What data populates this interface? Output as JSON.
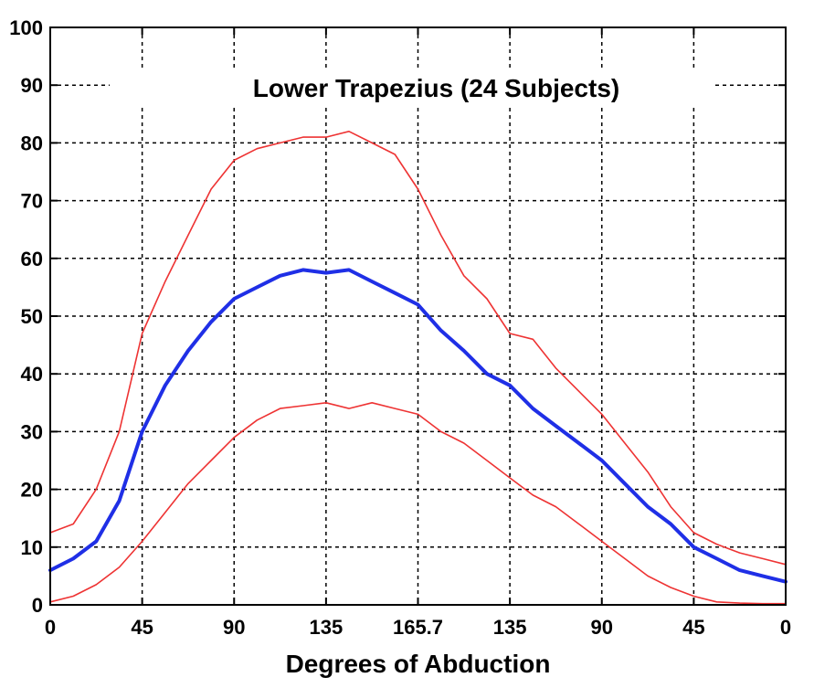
{
  "chart_data": {
    "type": "line",
    "title": "Lower Trapezius (24 Subjects)",
    "xlabel": "Degrees of Abduction",
    "ylabel": "",
    "ylim": [
      0,
      100
    ],
    "yticks": [
      "0",
      "10",
      "20",
      "30",
      "40",
      "50",
      "60",
      "70",
      "80",
      "90",
      "100"
    ],
    "xticks": [
      "0",
      "45",
      "90",
      "135",
      "165.7",
      "135",
      "90",
      "45",
      "0"
    ],
    "grid": true,
    "x_note": "abduction from 0 up to 165.7 degrees then back down to 0; points indexed by x tick position",
    "series": [
      {
        "color": "#ee3333",
        "style": "upper",
        "points": [
          [
            0,
            12.5
          ],
          [
            0.25,
            14
          ],
          [
            0.5,
            20
          ],
          [
            0.75,
            30
          ],
          [
            1.0,
            47
          ],
          [
            1.25,
            56
          ],
          [
            1.5,
            64
          ],
          [
            1.75,
            72
          ],
          [
            2.0,
            77
          ],
          [
            2.25,
            79
          ],
          [
            2.5,
            80
          ],
          [
            2.75,
            81
          ],
          [
            3.0,
            81
          ],
          [
            3.25,
            82
          ],
          [
            3.5,
            80
          ],
          [
            3.75,
            78
          ],
          [
            4.0,
            72
          ],
          [
            4.25,
            64
          ],
          [
            4.5,
            57
          ],
          [
            4.75,
            53
          ],
          [
            5.0,
            47
          ],
          [
            5.25,
            46
          ],
          [
            5.5,
            41
          ],
          [
            5.75,
            37
          ],
          [
            6.0,
            33
          ],
          [
            6.25,
            28
          ],
          [
            6.5,
            23
          ],
          [
            6.75,
            17
          ],
          [
            7.0,
            12.5
          ],
          [
            7.25,
            10.5
          ],
          [
            7.5,
            9
          ],
          [
            7.75,
            8
          ],
          [
            8.0,
            7
          ]
        ]
      },
      {
        "color": "#1f2fe6",
        "style": "mean",
        "points": [
          [
            0,
            6
          ],
          [
            0.25,
            8
          ],
          [
            0.5,
            11
          ],
          [
            0.75,
            18
          ],
          [
            1.0,
            30
          ],
          [
            1.25,
            38
          ],
          [
            1.5,
            44
          ],
          [
            1.75,
            49
          ],
          [
            2.0,
            53
          ],
          [
            2.25,
            55
          ],
          [
            2.5,
            57
          ],
          [
            2.75,
            58
          ],
          [
            3.0,
            57.5
          ],
          [
            3.25,
            58
          ],
          [
            3.5,
            56
          ],
          [
            3.75,
            54
          ],
          [
            4.0,
            52
          ],
          [
            4.25,
            47.5
          ],
          [
            4.5,
            44
          ],
          [
            4.75,
            40
          ],
          [
            5.0,
            38
          ],
          [
            5.25,
            34
          ],
          [
            5.5,
            31
          ],
          [
            5.75,
            28
          ],
          [
            6.0,
            25
          ],
          [
            6.25,
            21
          ],
          [
            6.5,
            17
          ],
          [
            6.75,
            14
          ],
          [
            7.0,
            10
          ],
          [
            7.25,
            8
          ],
          [
            7.5,
            6
          ],
          [
            7.75,
            5
          ],
          [
            8.0,
            4
          ]
        ]
      },
      {
        "color": "#ee3333",
        "style": "lower",
        "points": [
          [
            0,
            0.5
          ],
          [
            0.25,
            1.5
          ],
          [
            0.5,
            3.5
          ],
          [
            0.75,
            6.5
          ],
          [
            1.0,
            11
          ],
          [
            1.25,
            16
          ],
          [
            1.5,
            21
          ],
          [
            1.75,
            25
          ],
          [
            2.0,
            29
          ],
          [
            2.25,
            32
          ],
          [
            2.5,
            34
          ],
          [
            2.75,
            34.5
          ],
          [
            3.0,
            35
          ],
          [
            3.25,
            34
          ],
          [
            3.5,
            35
          ],
          [
            3.75,
            34
          ],
          [
            4.0,
            33
          ],
          [
            4.25,
            30
          ],
          [
            4.5,
            28
          ],
          [
            4.75,
            25
          ],
          [
            5.0,
            22
          ],
          [
            5.25,
            19
          ],
          [
            5.5,
            17
          ],
          [
            5.75,
            14
          ],
          [
            6.0,
            11
          ],
          [
            6.25,
            8
          ],
          [
            6.5,
            5
          ],
          [
            6.75,
            3
          ],
          [
            7.0,
            1.5
          ],
          [
            7.25,
            0.5
          ],
          [
            7.5,
            0.3
          ],
          [
            7.75,
            0.2
          ],
          [
            8.0,
            0.2
          ]
        ]
      }
    ]
  }
}
